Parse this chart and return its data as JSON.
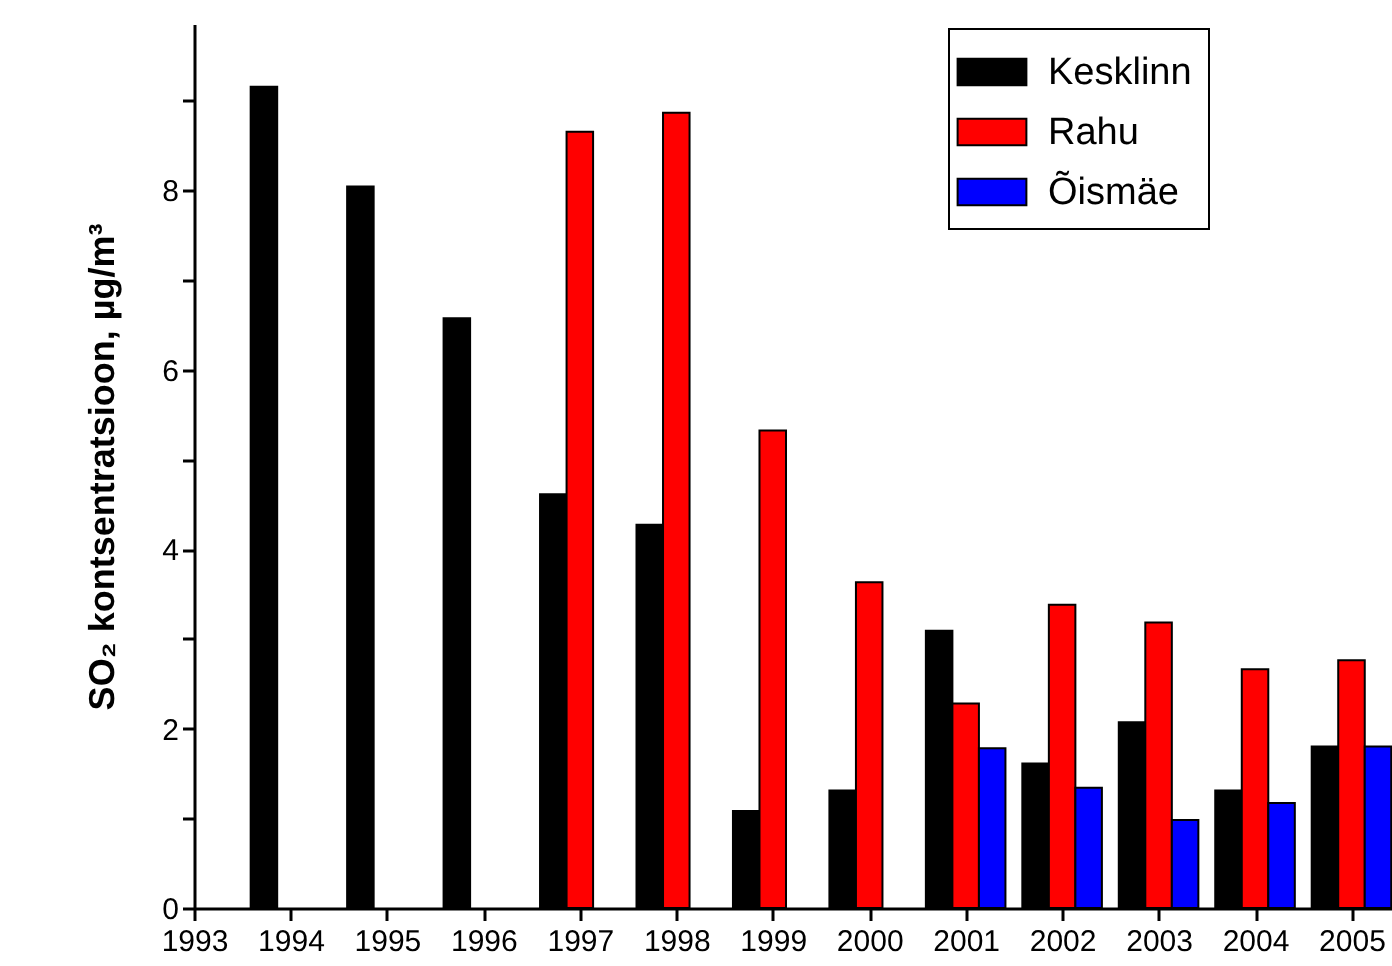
{
  "chart_data": {
    "type": "bar",
    "ylabel": "SO₂ kontsentratsioon, µg/m³",
    "x": [
      1994,
      1995,
      1996,
      1997,
      1998,
      1999,
      2000,
      2001,
      2002,
      2003,
      2004,
      2005
    ],
    "series": [
      {
        "name": "Kesklinn",
        "color": "#000000",
        "values": [
          9.15,
          8.04,
          6.57,
          4.61,
          4.27,
          1.08,
          1.31,
          3.09,
          1.61,
          2.07,
          1.31,
          1.8
        ]
      },
      {
        "name": "Rahu",
        "color": "#ff0000",
        "values": [
          null,
          null,
          null,
          8.65,
          8.86,
          5.32,
          3.63,
          2.28,
          3.38,
          3.18,
          2.66,
          2.76
        ]
      },
      {
        "name": "Õismäe",
        "color": "#0000ff",
        "values": [
          null,
          null,
          null,
          null,
          null,
          null,
          null,
          1.78,
          1.34,
          0.98,
          1.17,
          1.8
        ]
      }
    ],
    "xlim": [
      1993,
      2005.42
    ],
    "xticks": [
      1993,
      1994,
      1995,
      1996,
      1997,
      1998,
      1999,
      2000,
      2001,
      2002,
      2003,
      2004,
      2005
    ],
    "ylim": [
      0,
      9.85
    ],
    "yticks": [
      0,
      {
        "value": 1,
        "label": null
      },
      2,
      {
        "value": 3,
        "label": null
      },
      4,
      {
        "value": 5,
        "label": null
      },
      6,
      {
        "value": 7,
        "label": null
      },
      8,
      {
        "value": 9,
        "label": null
      }
    ],
    "legend": "top right"
  }
}
